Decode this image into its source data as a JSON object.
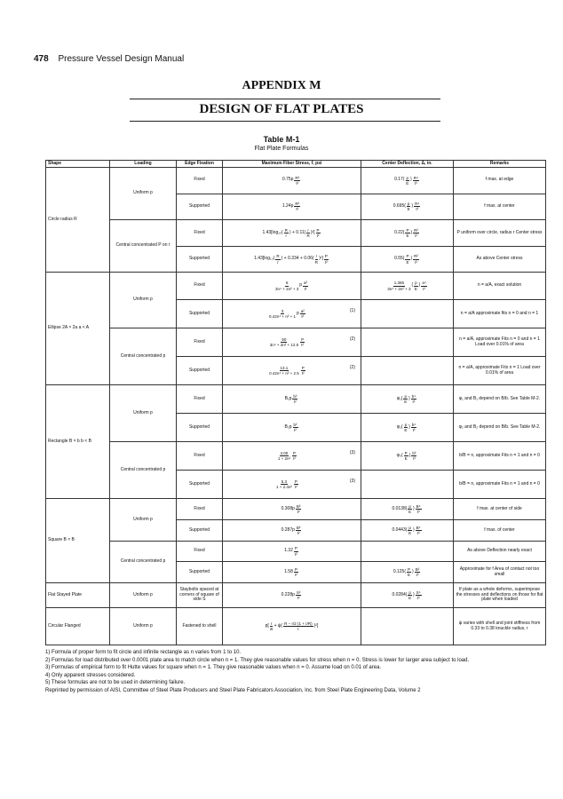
{
  "page": {
    "number": "478",
    "running_title": "Pressure Vessel Design Manual"
  },
  "appendix": "APPENDIX M",
  "title": "DESIGN OF FLAT PLATES",
  "table": {
    "title": "Table M-1",
    "subtitle": "Flat Plate Formulas",
    "headers": [
      "Shape",
      "Loading",
      "Edge Fixation",
      "Maximum Fiber Stress, f, psi",
      "Center Deflection, Δ, in.",
      "Remarks"
    ],
    "groups": [
      {
        "shape": "Circle radius R",
        "loadings": [
          {
            "loading": "Uniform p",
            "rows": [
              {
                "edge": "Fixed",
                "stress": [
                  "0.75p",
                  {
                    "n": "R²",
                    "d": "t²"
                  }
                ],
                "note": "",
                "deflection": [
                  "0.17(",
                  {
                    "n": "p",
                    "d": "E"
                  },
                  ")",
                  {
                    "n": "R⁴",
                    "d": "t³"
                  }
                ],
                "remark": "f max. at edge"
              },
              {
                "edge": "Supported",
                "stress": [
                  "1.24p",
                  {
                    "n": "R²",
                    "d": "t²"
                  }
                ],
                "note": "",
                "deflection": [
                  "0.695(",
                  {
                    "n": "p",
                    "d": "E"
                  },
                  ")",
                  {
                    "n": "R⁴",
                    "d": "t³"
                  }
                ],
                "remark": "f max. at center"
              }
            ]
          },
          {
            "loading": "Central concentrated P on r",
            "rows": [
              {
                "edge": "Fixed",
                "stress": [
                  "1.43[log₁₀(",
                  {
                    "n": "R",
                    "d": "r"
                  },
                  ") + 0.11(",
                  {
                    "n": "r",
                    "d": "R"
                  },
                  ")²]",
                  {
                    "n": "P",
                    "d": "t²"
                  }
                ],
                "note": "",
                "deflection": [
                  "0.22(",
                  {
                    "n": "P",
                    "d": "E"
                  },
                  ")",
                  {
                    "n": "R²",
                    "d": "t³"
                  }
                ],
                "remark": "P uniform over circle, radius r Center stress"
              },
              {
                "edge": "Supported",
                "stress": [
                  "1.43[log₁₀(",
                  {
                    "n": "R",
                    "d": "r"
                  },
                  ") + 0.334 + 0.06(",
                  {
                    "n": "r",
                    "d": "R"
                  },
                  ")²]",
                  {
                    "n": "P",
                    "d": "t²"
                  }
                ],
                "note": "",
                "deflection": [
                  "0.55(",
                  {
                    "n": "P",
                    "d": "E"
                  },
                  ")",
                  {
                    "n": "R²",
                    "d": "t³"
                  }
                ],
                "remark": "As above Center stress"
              }
            ]
          }
        ]
      },
      {
        "shape": "Ellipse 2A × 2a a < A",
        "loadings": [
          {
            "loading": "Uniform p",
            "rows": [
              {
                "edge": "Fixed",
                "stress": [
                  {
                    "n": "6",
                    "d": "3n⁴ + 2n² + 3"
                  },
                  "p",
                  {
                    "n": "a²",
                    "d": "t²"
                  }
                ],
                "note": "",
                "deflection": [
                  {
                    "n": "1.365",
                    "d": "3n⁴ + 2n² + 3"
                  },
                  "(",
                  {
                    "n": "p",
                    "d": "E"
                  },
                  ")",
                  {
                    "n": "a⁴",
                    "d": "t³"
                  }
                ],
                "remark": "n = a/A, exact solution"
              },
              {
                "edge": "Supported",
                "stress": [
                  {
                    "n": "3",
                    "d": "0.42n⁴ + n² + 1"
                  },
                  "p",
                  {
                    "n": "a²",
                    "d": "t²"
                  }
                ],
                "note": "(1)",
                "deflection": [],
                "remark": "n = a/A approximate fits n = 0 and n = 1"
              }
            ]
          },
          {
            "loading": "Central concentrated p",
            "rows": [
              {
                "edge": "Fixed",
                "stress": [
                  {
                    "n": "50",
                    "d": "3n⁴ + 2n² + 12.5"
                  },
                  {
                    "n": "P",
                    "d": "t²"
                  }
                ],
                "note": "(2)",
                "deflection": [],
                "remark": "n = a/A, approximate Fits n = 0 and n = 1 Load over 0.01% of area"
              },
              {
                "edge": "Supported",
                "stress": [
                  {
                    "n": "13.1",
                    "d": "0.42n⁴ + n² + 2.5"
                  },
                  {
                    "n": "P",
                    "d": "t²"
                  }
                ],
                "note": "(2)",
                "deflection": [],
                "remark": "n = a/A, approximate Fits n = 1 Load over 0.01% of area"
              }
            ]
          }
        ]
      },
      {
        "shape": "Rectangle B × b b < B",
        "loadings": [
          {
            "loading": "Uniform p",
            "rows": [
              {
                "edge": "Fixed",
                "stress": [
                  "B₁p",
                  {
                    "n": "b²",
                    "d": "t²"
                  }
                ],
                "note": "",
                "deflection": [
                  "φ₁(",
                  {
                    "n": "p",
                    "d": "E"
                  },
                  ")",
                  {
                    "n": "b⁴",
                    "d": "t³"
                  }
                ],
                "remark": "φ₁ and B₁ depend on B/b. See Table M-2."
              },
              {
                "edge": "Supported",
                "stress": [
                  "B₂p",
                  {
                    "n": "b²",
                    "d": "t²"
                  }
                ],
                "note": "",
                "deflection": [
                  "φ₂(",
                  {
                    "n": "p",
                    "d": "E"
                  },
                  ")",
                  {
                    "n": "b⁴",
                    "d": "t³"
                  }
                ],
                "remark": "φ₂ and B₂ depend on B/b. See Table M-2."
              }
            ]
          },
          {
            "loading": "Central concentrated p",
            "rows": [
              {
                "edge": "Fixed",
                "stress": [
                  {
                    "n": "4.00",
                    "d": "1 + 2n²"
                  },
                  {
                    "n": "P",
                    "d": "t²"
                  }
                ],
                "note": "(3)",
                "deflection": [
                  "φ₃(",
                  {
                    "n": "P",
                    "d": "E"
                  },
                  ")",
                  {
                    "n": "b²",
                    "d": "t³"
                  }
                ],
                "remark": "b/B = n, approximate Fits n = 1 and n = 0"
              },
              {
                "edge": "Supported",
                "stress": [
                  {
                    "n": "5.3",
                    "d": "1 + 2.4n²"
                  },
                  {
                    "n": "P",
                    "d": "t²"
                  }
                ],
                "note": "(3)",
                "deflection": [],
                "remark": "b/B = n, approximate Fits n = 1 and n = 0"
              }
            ]
          }
        ]
      },
      {
        "shape": "Square B × B",
        "loadings": [
          {
            "loading": "Uniform p",
            "rows": [
              {
                "edge": "Fixed",
                "stress": [
                  "0.308p",
                  {
                    "n": "B²",
                    "d": "t²"
                  }
                ],
                "note": "",
                "deflection": [
                  "0.0138(",
                  {
                    "n": "p",
                    "d": "E"
                  },
                  ")",
                  {
                    "n": "B⁴",
                    "d": "t³"
                  }
                ],
                "remark": "f max. at center of side"
              },
              {
                "edge": "Supported",
                "stress": [
                  "0.287p",
                  {
                    "n": "B²",
                    "d": "t²"
                  }
                ],
                "note": "",
                "deflection": [
                  "0.0443(",
                  {
                    "n": "p",
                    "d": "E"
                  },
                  ")",
                  {
                    "n": "B⁴",
                    "d": "t³"
                  }
                ],
                "remark": "f max. of center"
              }
            ]
          },
          {
            "loading": "Central concentrated p",
            "rows": [
              {
                "edge": "Fixed",
                "stress": [
                  "1.32",
                  {
                    "n": "P",
                    "d": "t²"
                  }
                ],
                "note": "",
                "deflection": [],
                "remark": "As above Deflection nearly exact"
              },
              {
                "edge": "Supported",
                "stress": [
                  "1.58",
                  {
                    "n": "P",
                    "d": "t²"
                  }
                ],
                "note": "",
                "deflection": [
                  "0.125(",
                  {
                    "n": "P",
                    "d": "E"
                  },
                  ")",
                  {
                    "n": "B²",
                    "d": "t³"
                  }
                ],
                "remark": "Approximate for f Area of contact not too small"
              }
            ]
          }
        ]
      },
      {
        "shape": "Flat Stayed Plate",
        "loadings": [
          {
            "loading": "Uniform p",
            "rows": [
              {
                "edge": "Staybolts spaced at corners of square of side S",
                "stress": [
                  "0.228p",
                  {
                    "n": "S²",
                    "d": "t²"
                  }
                ],
                "note": "",
                "deflection": [
                  "0.0284(",
                  {
                    "n": "p",
                    "d": "E"
                  },
                  ")",
                  {
                    "n": "S⁴",
                    "d": "t³"
                  }
                ],
                "remark": "If plate as a whole deforms, superimpose the stresses and deflections on those for flat plate when loaded"
              }
            ]
          }
        ]
      },
      {
        "shape": "Circular Flanged",
        "loadings": [
          {
            "loading": "Uniform p",
            "rows": [
              {
                "edge": "Fastened to shell",
                "stress": [
                  "p[",
                  {
                    "n": "r",
                    "d": "2t"
                  },
                  " + ψ(",
                  {
                    "n": "R − r/2 (1 + r/R)",
                    "d": "t"
                  },
                  ")²]"
                ],
                "note": "",
                "deflection": [],
                "remark": "ψ varies with shell and joint stiffness from 0.33 to 0.38 knuckle radius, r"
              }
            ]
          }
        ]
      }
    ]
  },
  "footnotes": [
    "1) Formula of proper form to fit circle and infinite rectangle as n varies from 1 to 10.",
    "2) Formulas for load distributed over 0.0001 plate area to match circle when n = 1. They give reasonable values for stress when n = 0. Stress is lower for larger area subject to load.",
    "3) Formulas of empirical form to fit Hutte values for square when n = 1. They give reasonable values when n = 0. Assume load on 0.01 of area.",
    "4) Only apparent stresses considered.",
    "5) These formulas are not to be used in determining failure.",
    "Reprinted by permission of AISI, Committee of Steel Plate Producers and Steel Plate Fabricators Association, Inc. from Steel Plate Engineering Data, Volume 2"
  ]
}
